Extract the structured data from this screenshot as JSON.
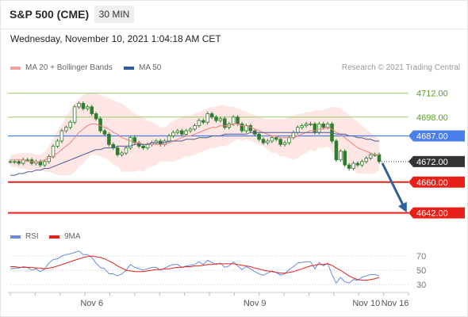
{
  "header": {
    "title": "S&P 500 (CME)",
    "timeframe": "30 MIN"
  },
  "timestamp": "Wednesday, November 10, 2021 1:04:18 AM CET",
  "legend": {
    "ma20": "MA 20 + Bollinger Bands",
    "ma50": "MA 50",
    "credit": "Research © 2021 Trading Central",
    "rsi": "RSI",
    "rsi9ma": "9MA"
  },
  "colors": {
    "candle": "#2e7d2e",
    "ma20": "#f08080",
    "ma50": "#4a5a9a",
    "bollinger_fill": "#fde0dc",
    "resistance": "#9acd6a",
    "pivot": "#4a7ee8",
    "support": "#e8201a",
    "current": "#333333",
    "arrow": "#2f5f9e",
    "rsi": "#6a8cdc",
    "rsi9ma": "#e8201a"
  },
  "chart_data": [
    {
      "type": "line",
      "name": "price",
      "ylim": [
        4633,
        4722
      ],
      "x_ticks": [
        "Nov 6",
        "Nov 9",
        "Nov 10",
        "Nov 16"
      ],
      "levels": [
        {
          "value": 4712.0,
          "label": "4712.00",
          "kind": "resistance"
        },
        {
          "value": 4698.0,
          "label": "4698.00",
          "kind": "resistance"
        },
        {
          "value": 4687.0,
          "label": "4687.00",
          "kind": "pivot"
        },
        {
          "value": 4672.0,
          "label": "4672.00",
          "kind": "current"
        },
        {
          "value": 4660.0,
          "label": "4660.00",
          "kind": "support"
        },
        {
          "value": 4642.0,
          "label": "4642.00",
          "kind": "support"
        }
      ],
      "candles_close": [
        4672,
        4672,
        4671,
        4673,
        4673,
        4671,
        4672,
        4670,
        4672,
        4675,
        4681,
        4684,
        4690,
        4692,
        4695,
        4704,
        4706,
        4703,
        4704,
        4700,
        4697,
        4690,
        4688,
        4682,
        4680,
        4676,
        4677,
        4680,
        4686,
        4683,
        4681,
        4680,
        4682,
        4683,
        4684,
        4682,
        4684,
        4687,
        4689,
        4690,
        4688,
        4690,
        4691,
        4693,
        4696,
        4695,
        4700,
        4698,
        4696,
        4697,
        4692,
        4694,
        4698,
        4694,
        4690,
        4693,
        4690,
        4688,
        4685,
        4683,
        4684,
        4686,
        4685,
        4682,
        4683,
        4686,
        4689,
        4692,
        4693,
        4694,
        4694,
        4689,
        4694,
        4692,
        4694,
        4684,
        4673,
        4678,
        4670,
        4668,
        4671,
        4670,
        4672,
        4674,
        4676,
        4676,
        4672
      ],
      "ma20": [
        4673,
        4673,
        4673,
        4673,
        4672,
        4672,
        4672,
        4672,
        4673,
        4674,
        4675,
        4677,
        4679,
        4681,
        4683,
        4686,
        4689,
        4691,
        4693,
        4694,
        4694,
        4693,
        4692,
        4691,
        4689,
        4688,
        4686,
        4685,
        4684,
        4683,
        4683,
        4682,
        4682,
        4682,
        4682,
        4682,
        4682,
        4683,
        4684,
        4685,
        4686,
        4687,
        4687,
        4688,
        4689,
        4690,
        4691,
        4692,
        4692,
        4693,
        4693,
        4693,
        4694,
        4694,
        4693,
        4693,
        4692,
        4691,
        4690,
        4689,
        4688,
        4687,
        4687,
        4686,
        4686,
        4686,
        4686,
        4687,
        4688,
        4689,
        4690,
        4690,
        4691,
        4691,
        4692,
        4691,
        4689,
        4688,
        4686,
        4684,
        4682,
        4680,
        4679,
        4678,
        4677,
        4676,
        4676
      ],
      "ma50": [
        4664,
        4664,
        4665,
        4665,
        4666,
        4666,
        4667,
        4667,
        4668,
        4668,
        4669,
        4670,
        4671,
        4672,
        4673,
        4674,
        4675,
        4676,
        4677,
        4678,
        4679,
        4679,
        4680,
        4680,
        4680,
        4681,
        4681,
        4681,
        4681,
        4682,
        4682,
        4682,
        4682,
        4683,
        4683,
        4683,
        4683,
        4684,
        4684,
        4684,
        4684,
        4685,
        4685,
        4685,
        4686,
        4686,
        4686,
        4687,
        4687,
        4687,
        4688,
        4688,
        4688,
        4688,
        4688,
        4688,
        4689,
        4689,
        4689,
        4689,
        4689,
        4689,
        4689,
        4689,
        4689,
        4689,
        4689,
        4689,
        4689,
        4689,
        4689,
        4689,
        4689,
        4689,
        4689,
        4689,
        4688,
        4688,
        4688,
        4687,
        4687,
        4686,
        4686,
        4685,
        4685,
        4684,
        4684
      ],
      "bollinger_upper": [
        4676,
        4676,
        4677,
        4677,
        4677,
        4677,
        4676,
        4676,
        4678,
        4681,
        4685,
        4690,
        4694,
        4698,
        4702,
        4706,
        4709,
        4711,
        4712,
        4712,
        4712,
        4711,
        4710,
        4709,
        4708,
        4707,
        4706,
        4704,
        4702,
        4700,
        4699,
        4698,
        4696,
        4695,
        4694,
        4692,
        4692,
        4694,
        4696,
        4697,
        4698,
        4699,
        4699,
        4700,
        4701,
        4702,
        4703,
        4704,
        4704,
        4705,
        4705,
        4704,
        4704,
        4703,
        4702,
        4701,
        4700,
        4699,
        4698,
        4697,
        4697,
        4697,
        4697,
        4697,
        4697,
        4698,
        4699,
        4700,
        4700,
        4701,
        4701,
        4702,
        4702,
        4702,
        4703,
        4704,
        4704,
        4703,
        4701,
        4699,
        4697,
        4695,
        4693,
        4691,
        4689,
        4687,
        4685
      ],
      "bollinger_lower": [
        4669,
        4669,
        4668,
        4668,
        4667,
        4667,
        4667,
        4667,
        4666,
        4666,
        4665,
        4664,
        4664,
        4664,
        4664,
        4666,
        4669,
        4671,
        4674,
        4676,
        4676,
        4675,
        4674,
        4673,
        4670,
        4669,
        4666,
        4666,
        4666,
        4666,
        4667,
        4666,
        4668,
        4669,
        4670,
        4672,
        4672,
        4672,
        4672,
        4673,
        4674,
        4675,
        4675,
        4676,
        4677,
        4678,
        4679,
        4680,
        4680,
        4681,
        4681,
        4682,
        4684,
        4685,
        4684,
        4685,
        4684,
        4683,
        4682,
        4681,
        4679,
        4677,
        4677,
        4675,
        4675,
        4674,
        4673,
        4674,
        4676,
        4677,
        4679,
        4678,
        4680,
        4680,
        4681,
        4678,
        4674,
        4673,
        4671,
        4669,
        4667,
        4665,
        4665,
        4665,
        4665,
        4665,
        4667
      ],
      "projection": {
        "from": 4672,
        "to": 4642
      }
    },
    {
      "type": "line",
      "name": "RSI",
      "ylim": [
        20,
        80
      ],
      "y_ticks": [
        70,
        50,
        30
      ],
      "rsi": [
        52,
        53,
        53,
        55,
        54,
        50,
        52,
        48,
        52,
        60,
        65,
        66,
        70,
        72,
        73,
        75,
        77,
        72,
        72,
        68,
        60,
        54,
        52,
        45,
        45,
        42,
        45,
        50,
        58,
        54,
        52,
        50,
        52,
        54,
        54,
        50,
        53,
        56,
        58,
        58,
        54,
        56,
        57,
        58,
        62,
        58,
        64,
        61,
        58,
        60,
        54,
        56,
        62,
        56,
        51,
        55,
        52,
        48,
        45,
        43,
        46,
        49,
        47,
        43,
        45,
        51,
        55,
        60,
        61,
        62,
        62,
        52,
        61,
        56,
        60,
        44,
        32,
        40,
        34,
        32,
        37,
        36,
        40,
        42,
        44,
        44,
        42
      ],
      "rsi9ma": [
        55,
        55,
        54,
        54,
        54,
        54,
        53,
        53,
        52,
        53,
        54,
        56,
        58,
        60,
        62,
        64,
        66,
        68,
        69,
        70,
        69,
        68,
        66,
        63,
        60,
        56,
        53,
        50,
        49,
        48,
        48,
        48,
        49,
        50,
        51,
        51,
        52,
        52,
        53,
        54,
        54,
        55,
        55,
        56,
        56,
        57,
        58,
        58,
        59,
        59,
        59,
        59,
        59,
        58,
        57,
        56,
        55,
        53,
        52,
        50,
        49,
        48,
        47,
        46,
        46,
        47,
        48,
        50,
        52,
        54,
        56,
        57,
        58,
        58,
        59,
        57,
        53,
        50,
        46,
        42,
        39,
        37,
        36,
        36,
        37,
        38,
        40
      ]
    }
  ]
}
